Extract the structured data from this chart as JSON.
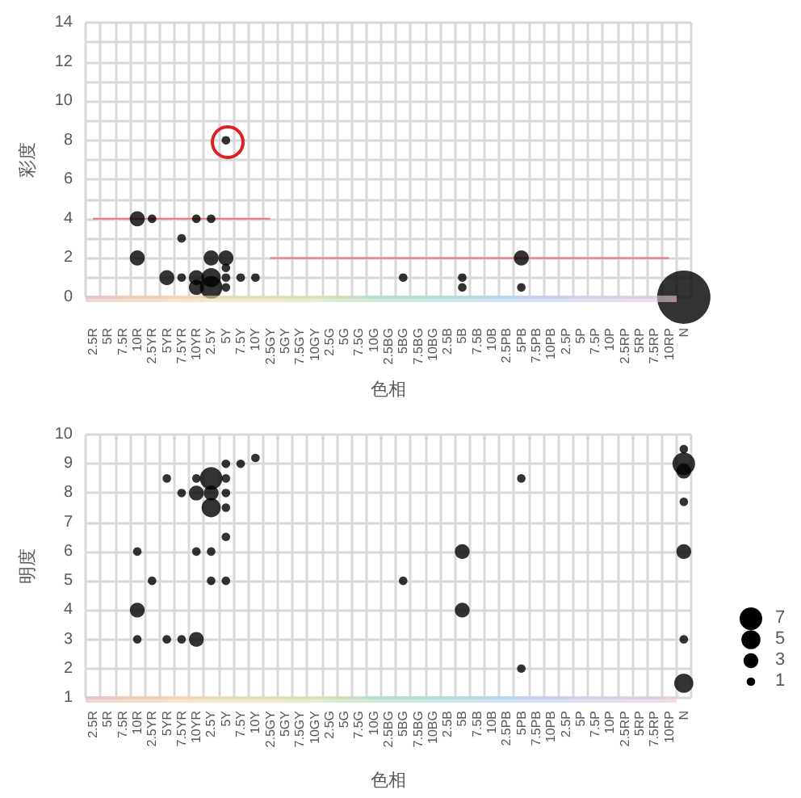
{
  "chart_data": [
    {
      "type": "bubble",
      "xlabel": "色相",
      "ylabel": "彩度",
      "categories": [
        "2.5R",
        "5R",
        "7.5R",
        "10R",
        "2.5YR",
        "5YR",
        "7.5YR",
        "10YR",
        "2.5Y",
        "5Y",
        "7.5Y",
        "10Y",
        "2.5GY",
        "5GY",
        "7.5GY",
        "10GY",
        "2.5G",
        "5G",
        "7.5G",
        "10G",
        "2.5BG",
        "5BG",
        "7.5BG",
        "10BG",
        "2.5B",
        "5B",
        "7.5B",
        "10B",
        "2.5PB",
        "5PB",
        "7.5PB",
        "10PB",
        "2.5P",
        "5P",
        "7.5P",
        "10P",
        "2.5RP",
        "5RP",
        "7.5RP",
        "10RP",
        "N"
      ],
      "series": [
        {
          "color": "#000000",
          "x": [
            "10R",
            "10R",
            "2.5YR",
            "5YR",
            "7.5YR",
            "7.5YR",
            "10YR",
            "10YR",
            "10YR",
            "2.5Y",
            "2.5Y",
            "2.5Y",
            "2.5Y",
            "5Y",
            "5Y",
            "5Y",
            "5Y",
            "5Y",
            "7.5Y",
            "10Y",
            "5BG",
            "5B",
            "5B",
            "5PB",
            "5PB",
            "N"
          ],
          "values": [
            4,
            2,
            4,
            1,
            3,
            1,
            4,
            1,
            0.5,
            4,
            2,
            1,
            0.5,
            8,
            2,
            1.5,
            1,
            0.5,
            1,
            1,
            1,
            1,
            0.5,
            2,
            0.5,
            0
          ],
          "sizes": [
            0.08,
            0.08,
            0.026,
            0.08,
            0.026,
            0.026,
            0.026,
            0.08,
            0.08,
            0.026,
            0.08,
            0.13,
            0.18,
            0.026,
            0.08,
            0.026,
            0.026,
            0.026,
            0.026,
            0.026,
            0.026,
            0.026,
            0.026,
            0.08,
            0.026,
            1
          ]
        },
        {
          "type": "line",
          "marker": "none",
          "color": "#e8737a",
          "x": [
            "2.5R",
            "2.5GY"
          ],
          "values": [
            4,
            4
          ]
        },
        {
          "type": "line",
          "marker": "none",
          "color": "#e8737a",
          "x": [
            "2.5GY",
            "10RP"
          ],
          "values": [
            2,
            2
          ]
        }
      ],
      "ylim": [
        0,
        14
      ],
      "yticks": [
        0,
        {
          "value": 1,
          "label": null
        },
        2,
        {
          "value": 3,
          "label": null
        },
        4,
        {
          "value": 5,
          "label": null
        },
        6,
        {
          "value": 7,
          "label": null
        },
        8,
        {
          "value": 9,
          "label": null
        },
        10,
        {
          "value": 11,
          "label": null
        },
        12,
        {
          "value": 13,
          "label": null
        },
        14
      ],
      "grid": true,
      "marker": "circle"
    },
    {
      "type": "bubble",
      "xlabel": "色相",
      "ylabel": "明度",
      "categories": [
        "2.5R",
        "5R",
        "7.5R",
        "10R",
        "2.5YR",
        "5YR",
        "7.5YR",
        "10YR",
        "2.5Y",
        "5Y",
        "7.5Y",
        "10Y",
        "2.5GY",
        "5GY",
        "7.5GY",
        "10GY",
        "2.5G",
        "5G",
        "7.5G",
        "10G",
        "2.5BG",
        "5BG",
        "7.5BG",
        "10BG",
        "2.5B",
        "5B",
        "7.5B",
        "10B",
        "2.5PB",
        "5PB",
        "7.5PB",
        "10PB",
        "2.5P",
        "5P",
        "7.5P",
        "10P",
        "2.5RP",
        "5RP",
        "7.5RP",
        "10RP",
        "N"
      ],
      "series": [
        {
          "color": "#000000",
          "x": [
            "10R",
            "10R",
            "10R",
            "2.5YR",
            "5YR",
            "5YR",
            "7.5YR",
            "7.5YR",
            "10YR",
            "10YR",
            "10YR",
            "10YR",
            "2.5Y",
            "2.5Y",
            "2.5Y",
            "2.5Y",
            "2.5Y",
            "5Y",
            "5Y",
            "5Y",
            "5Y",
            "5Y",
            "5Y",
            "7.5Y",
            "10Y",
            "5BG",
            "5B",
            "5B",
            "5PB",
            "5PB",
            "N",
            "N",
            "N",
            "N",
            "N",
            "N",
            "N"
          ],
          "values": [
            6,
            4,
            3,
            5,
            8.5,
            3,
            8,
            3,
            8.5,
            8,
            6,
            3,
            8.5,
            8,
            7.5,
            6,
            5,
            9,
            8.5,
            8,
            7.5,
            6.5,
            5,
            9,
            9.2,
            5,
            6,
            4,
            8.5,
            2,
            9.5,
            9,
            8.75,
            7.7,
            6,
            3,
            1.5
          ],
          "sizes": [
            1,
            3,
            1,
            1,
            1,
            1,
            1,
            1,
            1,
            3,
            1,
            3,
            7,
            3,
            5,
            1,
            1,
            1,
            1,
            1,
            1,
            1,
            1,
            1,
            1,
            1,
            3,
            3,
            1,
            1,
            1,
            7,
            3,
            1,
            3,
            1,
            5
          ]
        }
      ],
      "ylim": [
        1,
        10
      ],
      "yticks": [
        1,
        2,
        3,
        4,
        5,
        6,
        7,
        8,
        9,
        10
      ],
      "grid": true,
      "marker": "circle",
      "size_legend": [
        7,
        5,
        3,
        1
      ]
    }
  ]
}
